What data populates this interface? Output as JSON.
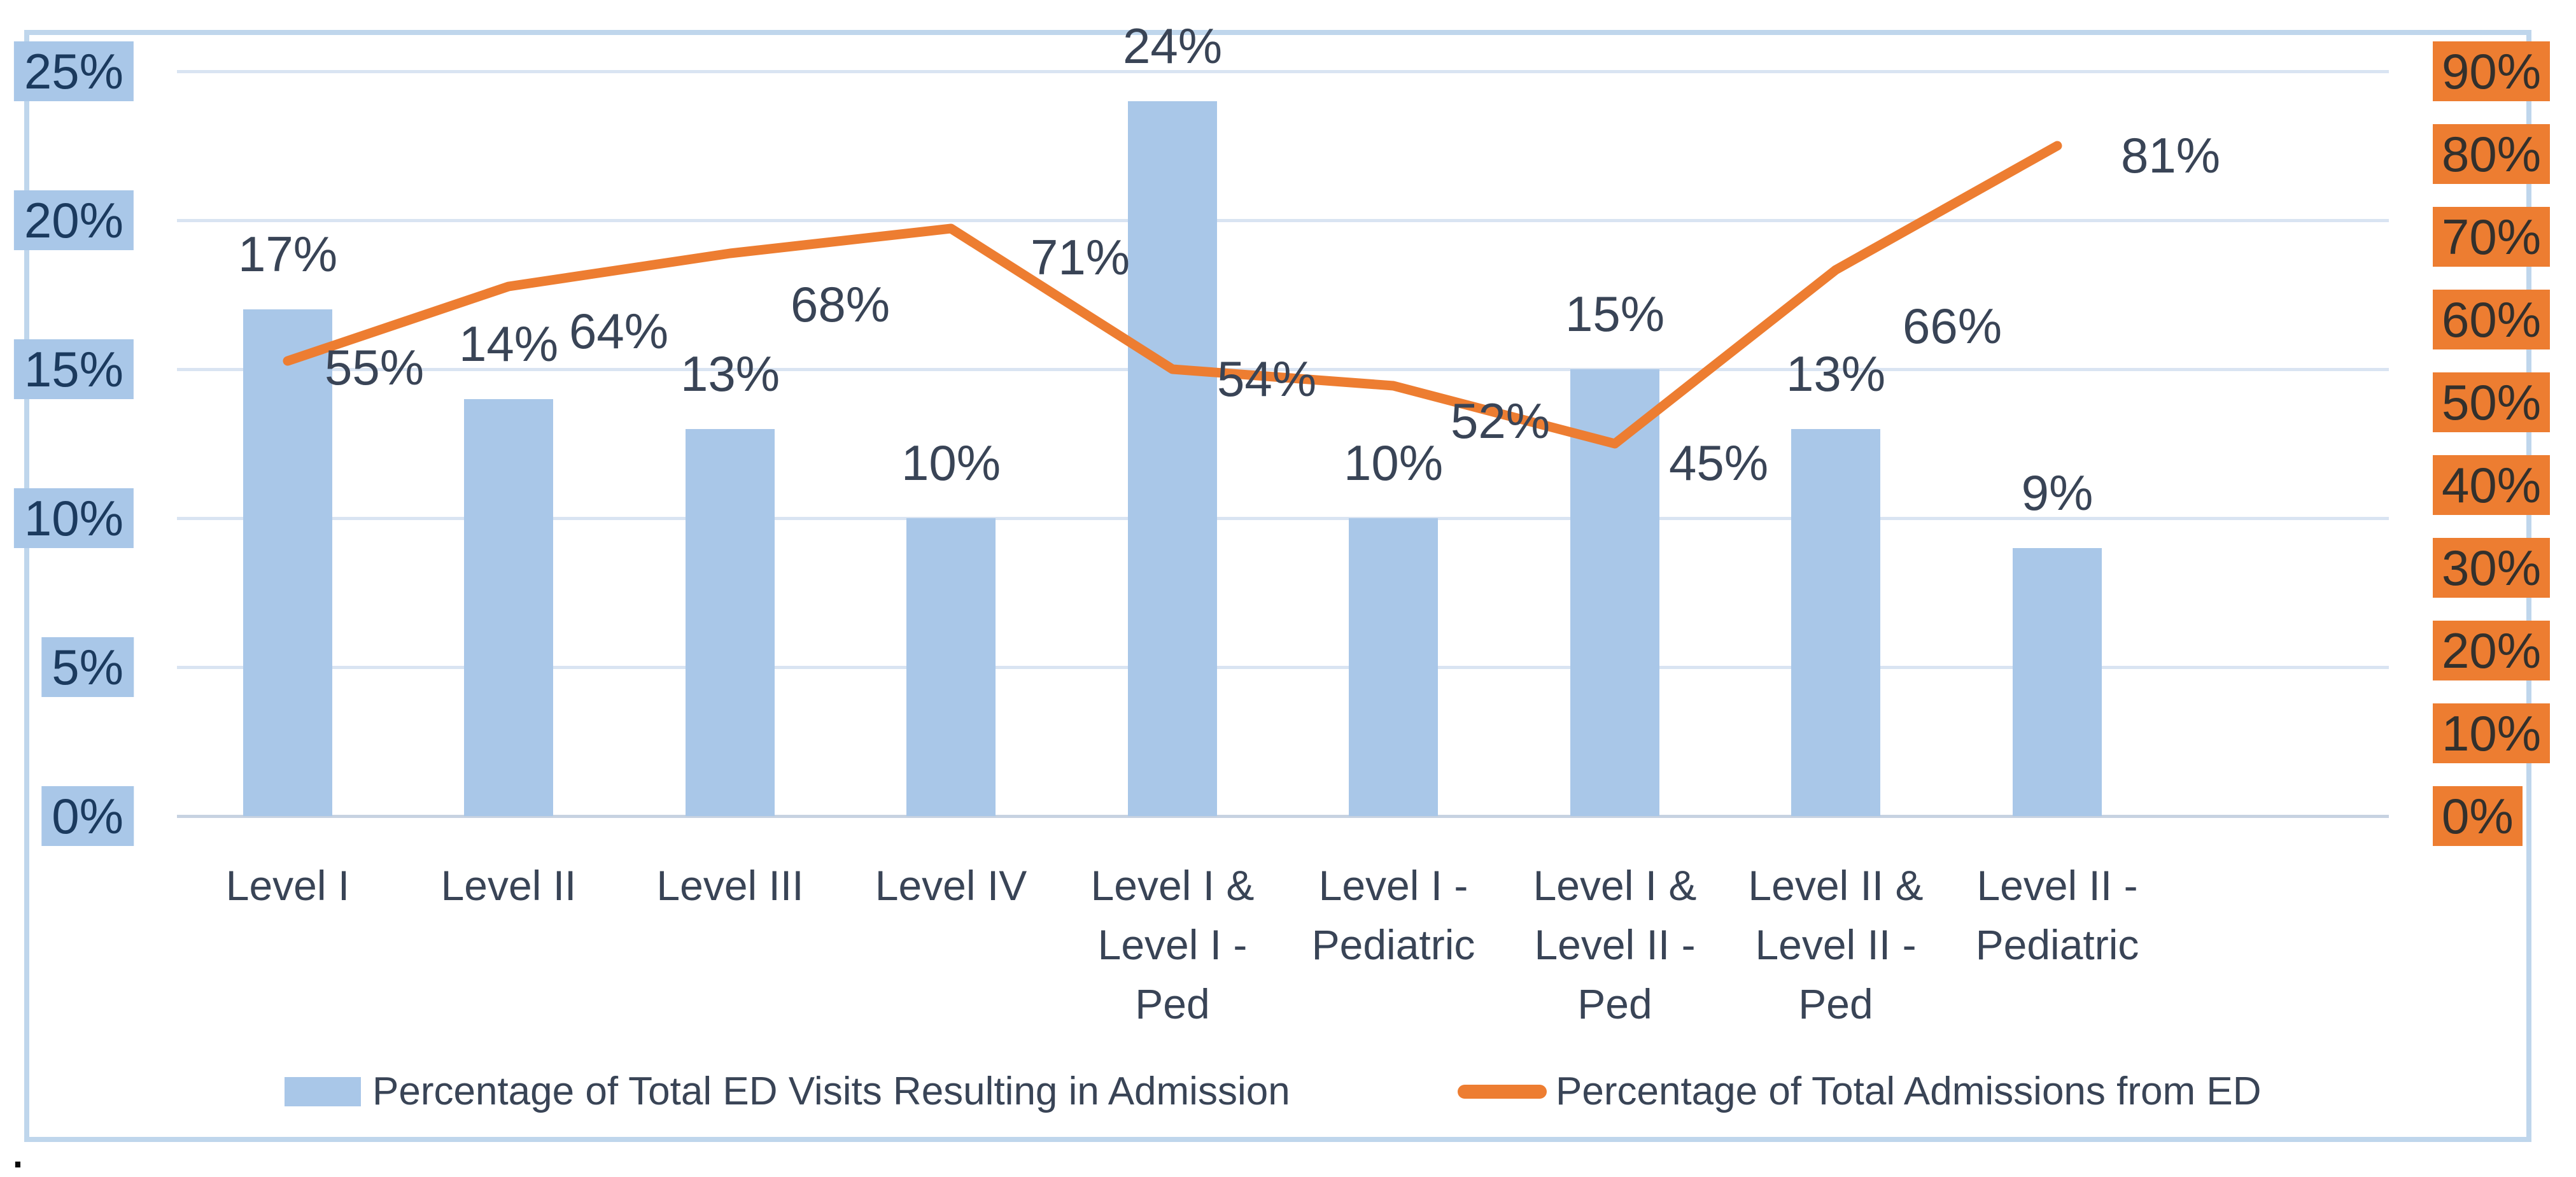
{
  "chart_data": {
    "type": "bar",
    "subtype": "combo-bar-line-dual-axis",
    "categories": [
      "Level I",
      "Level II",
      "Level III",
      "Level IV",
      "Level I &\nLevel I -\nPed",
      "Level I -\nPediatric",
      "Level I &\nLevel II -\nPed",
      "Level II &\nLevel II -\nPed",
      "Level II -\nPediatric"
    ],
    "series": [
      {
        "name": "Percentage of Total ED Visits Resulting in Admission",
        "type": "bar",
        "axis": "left",
        "values": [
          17,
          14,
          13,
          10,
          24,
          10,
          15,
          13,
          9
        ],
        "labels": [
          "17%",
          "14%",
          "13%",
          "10%",
          "24%",
          "10%",
          "15%",
          "13%",
          "9%"
        ],
        "color": "#A9C7E8"
      },
      {
        "name": "Percentage of Total Admissions from ED",
        "type": "line",
        "axis": "right",
        "values": [
          55,
          64,
          68,
          71,
          54,
          52,
          45,
          66,
          81
        ],
        "labels": [
          "55%",
          "64%",
          "68%",
          "71%",
          "54%",
          "52%",
          "45%",
          "66%",
          "81%"
        ],
        "color": "#ED7D31"
      }
    ],
    "left_axis": {
      "min": 0,
      "max": 25,
      "step": 5,
      "tick_labels": [
        "0%",
        "5%",
        "10%",
        "15%",
        "20%",
        "25%"
      ],
      "highlight_color": "#A9C7E8",
      "text_color": "#1B3A5E"
    },
    "right_axis": {
      "min": 0,
      "max": 90,
      "step": 10,
      "tick_labels": [
        "0%",
        "10%",
        "20%",
        "30%",
        "40%",
        "50%",
        "60%",
        "70%",
        "80%",
        "90%"
      ],
      "highlight_color": "#ED7D31",
      "text_color": "#33302C"
    },
    "grid": true,
    "gridline_color": "#D9E4F2",
    "legend_position": "bottom",
    "title": "",
    "xlabel": "",
    "ylabel": ""
  },
  "legend": {
    "items": [
      {
        "label": "Percentage of Total ED Visits Resulting in Admission",
        "swatch": "bar-swatch"
      },
      {
        "label": "Percentage of Total Admissions from ED",
        "swatch": "line-swatch"
      }
    ]
  },
  "footnote": "."
}
